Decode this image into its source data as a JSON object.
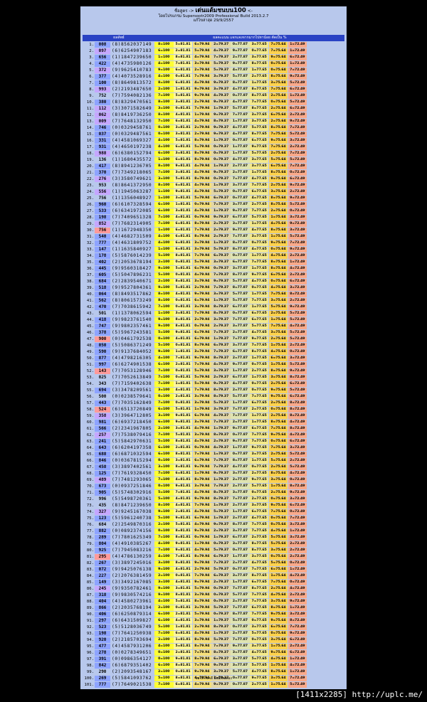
{
  "header": {
    "line1_prefix": "ชื่อสูตร ->",
    "line1_title": "เด่นแต้มชนบน100",
    "line1_suffix": "<-",
    "line2": "โดยโปรแกรม Supersootr2009 Professional Build 2013.2.7",
    "line3_label": "แก้ไขล่าสุด",
    "line3_date": "29/9/2557"
  },
  "columns": {
    "left": "ผลลัพธ์",
    "right": "ผลคะแนน แจกแจงจากมากไปหาน้อย ตัดเป็น %"
  },
  "rows": [
    {
      "idx": "1.",
      "grp": "008",
      "grpc": "g-blue",
      "n": "(8)",
      "dig": "8562037149"
    },
    {
      "idx": "2.",
      "grp": "097",
      "grpc": "g-purple",
      "n": "(6)",
      "dig": "6254907183"
    },
    {
      "idx": "3.",
      "grp": "656",
      "grpc": "g-blue",
      "n": "(1)",
      "dig": "1847239650"
    },
    {
      "idx": "4.",
      "grp": "422",
      "grpc": "g-blue",
      "n": "(4)",
      "dig": "4735980126"
    },
    {
      "idx": "5.",
      "grp": "372",
      "grpc": "g-purple",
      "n": "(9)",
      "dig": "9625410783"
    },
    {
      "idx": "6.",
      "grp": "377",
      "grpc": "g-blue",
      "n": "(4)",
      "dig": "4073528916"
    },
    {
      "idx": "7.",
      "grp": "100",
      "grpc": "g-blue",
      "n": "(8)",
      "dig": "8649813572"
    },
    {
      "idx": "8.",
      "grp": "993",
      "grpc": "g-purple",
      "n": "(2)",
      "dig": "2193487650"
    },
    {
      "idx": "9.",
      "grp": "752",
      "grpc": "g-plain",
      "n": "(7)",
      "dig": "7594082136"
    },
    {
      "idx": "10.",
      "grp": "380",
      "grpc": "g-blue",
      "n": "(8)",
      "dig": "8329470561"
    },
    {
      "idx": "11.",
      "grp": "112",
      "grpc": "g-purple",
      "n": "(3)",
      "dig": "3071582649"
    },
    {
      "idx": "12.",
      "grp": "062",
      "grpc": "g-purple",
      "n": "(8)",
      "dig": "8419736250"
    },
    {
      "idx": "13.",
      "grp": "009",
      "grpc": "g-purple",
      "n": "(7)",
      "dig": "7648132950"
    },
    {
      "idx": "14.",
      "grp": "746",
      "grpc": "g-blue",
      "n": "(0)",
      "dig": "0329458761"
    },
    {
      "idx": "15.",
      "grp": "037",
      "grpc": "g-blue",
      "n": "(0)",
      "dig": "0329487561"
    },
    {
      "idx": "16.",
      "grp": "331",
      "grpc": "g-blue",
      "n": "(4)",
      "dig": "4581069327"
    },
    {
      "idx": "17.",
      "grp": "931",
      "grpc": "g-blue",
      "n": "(4)",
      "dig": "4650197238"
    },
    {
      "idx": "18.",
      "grp": "988",
      "grpc": "g-purple",
      "n": "(6)",
      "dig": "6380152794"
    },
    {
      "idx": "19.",
      "grp": "136",
      "grpc": "g-plain",
      "n": "(1)",
      "dig": "1680435572"
    },
    {
      "idx": "20.",
      "grp": "417",
      "grpc": "g-blue",
      "n": "(8)",
      "dig": "8941236705"
    },
    {
      "idx": "21.",
      "grp": "370",
      "grpc": "g-blue",
      "n": "(7)",
      "dig": "7349218065"
    },
    {
      "idx": "22.",
      "grp": "276",
      "grpc": "g-purple",
      "n": "(3)",
      "dig": "3580749621"
    },
    {
      "idx": "23.",
      "grp": "953",
      "grpc": "g-plain",
      "n": "(8)",
      "dig": "8641372950"
    },
    {
      "idx": "24.",
      "grp": "556",
      "grpc": "g-purple",
      "n": "(1)",
      "dig": "1945063287"
    },
    {
      "idx": "25.",
      "grp": "756",
      "grpc": "g-plain",
      "n": "(1)",
      "dig": "1356048927"
    },
    {
      "idx": "26.",
      "grp": "960",
      "grpc": "g-blue",
      "n": "(6)",
      "dig": "6107328594"
    },
    {
      "idx": "27.",
      "grp": "533",
      "grpc": "g-blue",
      "n": "(6)",
      "dig": "6341972085"
    },
    {
      "idx": "28.",
      "grp": "198",
      "grpc": "g-blue",
      "n": "(7)",
      "dig": "7409651328"
    },
    {
      "idx": "29.",
      "grp": "852",
      "grpc": "g-purple",
      "n": "(7)",
      "dig": "7682314905"
    },
    {
      "idx": "30.",
      "grp": "756",
      "grpc": "g-red",
      "n": "(1)",
      "dig": "1672948350"
    },
    {
      "idx": "31.",
      "grp": "540",
      "grpc": "g-blue",
      "n": "(4)",
      "dig": "4682731509"
    },
    {
      "idx": "32.",
      "grp": "777",
      "grpc": "g-blue",
      "n": "(4)",
      "dig": "4631809752"
    },
    {
      "idx": "33.",
      "grp": "147",
      "grpc": "g-blue",
      "n": "(1)",
      "dig": "1635840927"
    },
    {
      "idx": "34.",
      "grp": "178",
      "grpc": "g-blue",
      "n": "(5)",
      "dig": "5876014239"
    },
    {
      "idx": "35.",
      "grp": "402",
      "grpc": "g-blue",
      "n": "(2)",
      "dig": "2053678194"
    },
    {
      "idx": "36.",
      "grp": "445",
      "grpc": "g-blue",
      "n": "(9)",
      "dig": "9560318427"
    },
    {
      "idx": "37.",
      "grp": "605",
      "grpc": "g-blue",
      "n": "(5)",
      "dig": "5047896231"
    },
    {
      "idx": "38.",
      "grp": "684",
      "grpc": "g-blue",
      "n": "(2)",
      "dig": "2839540671"
    },
    {
      "idx": "39.",
      "grp": "518",
      "grpc": "g-blue",
      "n": "(9)",
      "dig": "9527804361"
    },
    {
      "idx": "40.",
      "grp": "064",
      "grpc": "g-blue",
      "n": "(8)",
      "dig": "8493517862"
    },
    {
      "idx": "41.",
      "grp": "562",
      "grpc": "g-blue",
      "n": "(8)",
      "dig": "8061573249"
    },
    {
      "idx": "42.",
      "grp": "470",
      "grpc": "g-blue",
      "n": "(7)",
      "dig": "7038615942"
    },
    {
      "idx": "43.",
      "grp": "501",
      "grpc": "g-plain",
      "n": "(1)",
      "dig": "1378062594"
    },
    {
      "idx": "44.",
      "grp": "418",
      "grpc": "g-blue",
      "n": "(9)",
      "dig": "9823761540"
    },
    {
      "idx": "45.",
      "grp": "747",
      "grpc": "g-blue",
      "n": "(9)",
      "dig": "9802357461"
    },
    {
      "idx": "46.",
      "grp": "378",
      "grpc": "g-blue",
      "n": "(5)",
      "dig": "5967243581"
    },
    {
      "idx": "47.",
      "grp": "900",
      "grpc": "g-red",
      "n": "(0)",
      "dig": "0461792538"
    },
    {
      "idx": "48.",
      "grp": "050",
      "grpc": "g-blue",
      "n": "(5)",
      "dig": "5086371249"
    },
    {
      "idx": "49.",
      "grp": "590",
      "grpc": "g-blue",
      "n": "(9)",
      "dig": "9137684052"
    },
    {
      "idx": "50.",
      "grp": "877",
      "grpc": "g-blue",
      "n": "(4)",
      "dig": "4798216305"
    },
    {
      "idx": "51.",
      "grp": "997",
      "grpc": "g-blue",
      "n": "(6)",
      "dig": "6274901538"
    },
    {
      "idx": "52.",
      "grp": "143",
      "grpc": "g-red",
      "n": "(7)",
      "dig": "7053128946"
    },
    {
      "idx": "53.",
      "grp": "025",
      "grpc": "g-plain",
      "n": "(7)",
      "dig": "7052613849"
    },
    {
      "idx": "54.",
      "grp": "343",
      "grpc": "g-plain",
      "n": "(7)",
      "dig": "7159402638"
    },
    {
      "idx": "55.",
      "grp": "694",
      "grpc": "g-blue",
      "n": "(3)",
      "dig": "3478209561"
    },
    {
      "idx": "56.",
      "grp": "500",
      "grpc": "g-plain",
      "n": "(0)",
      "dig": "0238579641"
    },
    {
      "idx": "57.",
      "grp": "443",
      "grpc": "g-blue",
      "n": "(7)",
      "dig": "7035162849"
    },
    {
      "idx": "58.",
      "grp": "524",
      "grpc": "g-red",
      "n": "(6)",
      "dig": "6513720849"
    },
    {
      "idx": "59.",
      "grp": "358",
      "grpc": "g-purple",
      "n": "(3)",
      "dig": "3964712805"
    },
    {
      "idx": "60.",
      "grp": "981",
      "grpc": "g-blue",
      "n": "(6)",
      "dig": "6937218450"
    },
    {
      "idx": "61.",
      "grp": "566",
      "grpc": "g-blue",
      "n": "(2)",
      "dig": "2341967805"
    },
    {
      "idx": "62.",
      "grp": "257",
      "grpc": "g-purple",
      "n": "(7)",
      "dig": "7538079416"
    },
    {
      "idx": "63.",
      "grp": "241",
      "grpc": "g-blue",
      "n": "(5)",
      "dig": "5842970631"
    },
    {
      "idx": "64.",
      "grp": "643",
      "grpc": "g-blue",
      "n": "(6)",
      "dig": "6204197358"
    },
    {
      "idx": "65.",
      "grp": "688",
      "grpc": "g-blue",
      "n": "(6)",
      "dig": "6871032594"
    },
    {
      "idx": "66.",
      "grp": "846",
      "grpc": "g-blue",
      "n": "(0)",
      "dig": "0367815294"
    },
    {
      "idx": "67.",
      "grp": "458",
      "grpc": "g-blue",
      "n": "(3)",
      "dig": "3897402561"
    },
    {
      "idx": "68.",
      "grp": "125",
      "grpc": "g-blue",
      "n": "(7)",
      "dig": "7619328450"
    },
    {
      "idx": "69.",
      "grp": "489",
      "grpc": "g-purple",
      "n": "(7)",
      "dig": "7481293065"
    },
    {
      "idx": "70.",
      "grp": "673",
      "grpc": "g-blue",
      "n": "(0)",
      "dig": "0937251846"
    },
    {
      "idx": "71.",
      "grp": "905",
      "grpc": "g-blue",
      "n": "(5)",
      "dig": "5748302916"
    },
    {
      "idx": "72.",
      "grp": "996",
      "grpc": "g-plain",
      "n": "(5)",
      "dig": "5498720361"
    },
    {
      "idx": "73.",
      "grp": "435",
      "grpc": "g-plain",
      "n": "(8)",
      "dig": "8471239650"
    },
    {
      "idx": "74.",
      "grp": "327",
      "grpc": "g-purple",
      "n": "(9)",
      "dig": "9245167038"
    },
    {
      "idx": "75.",
      "grp": "123",
      "grpc": "g-blue",
      "n": "(5)",
      "dig": "5961240738"
    },
    {
      "idx": "76.",
      "grp": "684",
      "grpc": "g-plain",
      "n": "(2)",
      "dig": "2549870316"
    },
    {
      "idx": "77.",
      "grp": "882",
      "grpc": "g-blue",
      "n": "(0)",
      "dig": "0892374156"
    },
    {
      "idx": "78.",
      "grp": "289",
      "grpc": "g-blue",
      "n": "(7)",
      "dig": "7801625349"
    },
    {
      "idx": "79.",
      "grp": "804",
      "grpc": "g-blue",
      "n": "(4)",
      "dig": "4910385267"
    },
    {
      "idx": "80.",
      "grp": "925",
      "grpc": "g-blue",
      "n": "(7)",
      "dig": "7945083216"
    },
    {
      "idx": "81.",
      "grp": "295",
      "grpc": "g-red",
      "n": "(4)",
      "dig": "4786130259"
    },
    {
      "idx": "82.",
      "grp": "267",
      "grpc": "g-blue",
      "n": "(3)",
      "dig": "3897245016"
    },
    {
      "idx": "83.",
      "grp": "072",
      "grpc": "g-blue",
      "n": "(9)",
      "dig": "9425076138"
    },
    {
      "idx": "84.",
      "grp": "227",
      "grpc": "g-blue",
      "n": "(2)",
      "dig": "2076381459"
    },
    {
      "idx": "85.",
      "grp": "149",
      "grpc": "g-blue",
      "n": "(3)",
      "dig": "3492167085"
    },
    {
      "idx": "86.",
      "grp": "245",
      "grpc": "g-purple",
      "n": "(9)",
      "dig": "9350782461"
    },
    {
      "idx": "87.",
      "grp": "318",
      "grpc": "g-blue",
      "n": "(9)",
      "dig": "9830574216"
    },
    {
      "idx": "88.",
      "grp": "404",
      "grpc": "g-blue",
      "n": "(4)",
      "dig": "4580273961"
    },
    {
      "idx": "89.",
      "grp": "866",
      "grpc": "g-blue",
      "n": "(2)",
      "dig": "2035768194"
    },
    {
      "idx": "90.",
      "grp": "406",
      "grpc": "g-blue",
      "n": "(6)",
      "dig": "6250879314"
    },
    {
      "idx": "91.",
      "grp": "297",
      "grpc": "g-blue",
      "n": "(6)",
      "dig": "6431509827"
    },
    {
      "idx": "92.",
      "grp": "523",
      "grpc": "g-blue",
      "n": "(5)",
      "dig": "5128036749"
    },
    {
      "idx": "93.",
      "grp": "198",
      "grpc": "g-blue",
      "n": "(7)",
      "dig": "7641250938"
    },
    {
      "idx": "94.",
      "grp": "920",
      "grpc": "g-blue",
      "n": "(2)",
      "dig": "2185703694"
    },
    {
      "idx": "95.",
      "grp": "477",
      "grpc": "g-blue",
      "n": "(4)",
      "dig": "4587931206"
    },
    {
      "idx": "96.",
      "grp": "278",
      "grpc": "g-blue",
      "n": "(0)",
      "dig": "0278349651"
    },
    {
      "idx": "97.",
      "grp": "391",
      "grpc": "g-blue",
      "n": "(0)",
      "dig": "0986354127"
    },
    {
      "idx": "98.",
      "grp": "842",
      "grpc": "g-blue",
      "n": "(6)",
      "dig": "6879351402"
    },
    {
      "idx": "99.",
      "grp": "290",
      "grpc": "g-plain",
      "n": "(2)",
      "dig": "2093548167"
    },
    {
      "idx": "100.",
      "grp": "269",
      "grpc": "g-blue",
      "n": "(5)",
      "dig": "5841093762"
    },
    {
      "idx": "101.",
      "grp": "777",
      "grpc": "g-blue",
      "n": "(7)",
      "dig": "7649021538"
    }
  ],
  "cell_values": [
    "=100",
    "=81.81",
    "=79.94",
    "=79.37",
    "=77.87",
    "=77.65",
    "=75.64",
    "=72.49"
  ],
  "cell_colors": [
    "#ffff33",
    "#fff799",
    "#f6e07a",
    "#e3d7a7",
    "#dfe4b1",
    "#f4e98a",
    "#ffd24d",
    "#f9a98a"
  ],
  "footer": "ขอให้โชคดี มั่งมีเงินทอง",
  "credit": "[1411x2285] http://uplc.me/"
}
